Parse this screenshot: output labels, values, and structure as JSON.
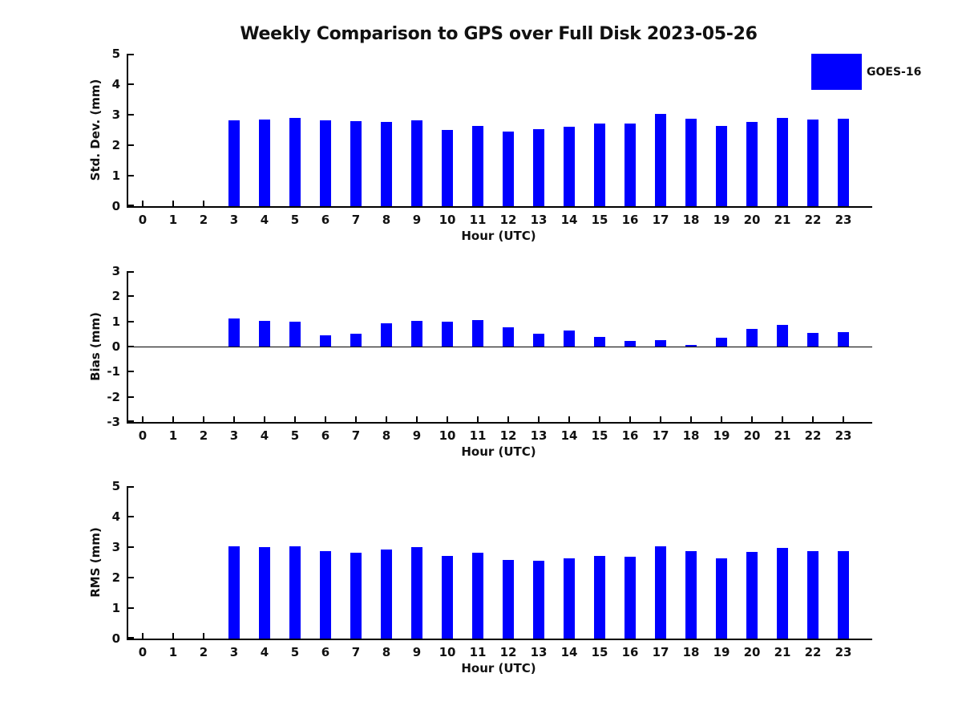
{
  "title": "Weekly Comparison to GPS over Full Disk 2023-05-26",
  "legend": {
    "label": "GOES-16",
    "color": "#0000FF",
    "position": "top-right"
  },
  "colors": {
    "bar": "#0000FF",
    "axis": "#000000",
    "text": "#111111",
    "background": "#ffffff"
  },
  "chart_data": [
    {
      "type": "bar",
      "title": "",
      "ylabel": "Std. Dev. (mm)",
      "xlabel": "Hour (UTC)",
      "ylim": [
        0,
        5
      ],
      "yticks": [
        0,
        1,
        2,
        3,
        4,
        5
      ],
      "xlim": [
        -0.5,
        24
      ],
      "x": [
        0,
        1,
        2,
        3,
        4,
        5,
        6,
        7,
        8,
        9,
        10,
        11,
        12,
        13,
        14,
        15,
        16,
        17,
        18,
        19,
        20,
        21,
        22,
        23
      ],
      "grid": false,
      "series": [
        {
          "name": "GOES-16",
          "values": [
            null,
            null,
            null,
            2.82,
            2.85,
            2.9,
            2.82,
            2.79,
            2.77,
            2.82,
            2.5,
            2.63,
            2.45,
            2.52,
            2.6,
            2.7,
            2.7,
            3.03,
            2.87,
            2.63,
            2.77,
            2.9,
            2.85,
            2.87
          ]
        }
      ]
    },
    {
      "type": "bar",
      "title": "",
      "ylabel": "Bias (mm)",
      "xlabel": "Hour (UTC)",
      "ylim": [
        -3,
        3
      ],
      "yticks": [
        -3,
        -2,
        -1,
        0,
        1,
        2,
        3
      ],
      "xlim": [
        -0.5,
        24
      ],
      "x": [
        0,
        1,
        2,
        3,
        4,
        5,
        6,
        7,
        8,
        9,
        10,
        11,
        12,
        13,
        14,
        15,
        16,
        17,
        18,
        19,
        20,
        21,
        22,
        23
      ],
      "grid": false,
      "zeroline": true,
      "series": [
        {
          "name": "GOES-16",
          "values": [
            null,
            null,
            null,
            1.12,
            1.03,
            1.0,
            0.44,
            0.5,
            0.94,
            1.03,
            1.0,
            1.06,
            0.78,
            0.52,
            0.63,
            0.37,
            0.23,
            0.27,
            0.07,
            0.34,
            0.69,
            0.87,
            0.54,
            0.56
          ]
        }
      ]
    },
    {
      "type": "bar",
      "title": "",
      "ylabel": "RMS (mm)",
      "xlabel": "Hour (UTC)",
      "ylim": [
        0,
        5
      ],
      "yticks": [
        0,
        1,
        2,
        3,
        4,
        5
      ],
      "xlim": [
        -0.5,
        24
      ],
      "x": [
        0,
        1,
        2,
        3,
        4,
        5,
        6,
        7,
        8,
        9,
        10,
        11,
        12,
        13,
        14,
        15,
        16,
        17,
        18,
        19,
        20,
        21,
        22,
        23
      ],
      "grid": false,
      "series": [
        {
          "name": "GOES-16",
          "values": [
            null,
            null,
            null,
            3.03,
            3.0,
            3.03,
            2.86,
            2.82,
            2.93,
            3.0,
            2.7,
            2.82,
            2.58,
            2.56,
            2.64,
            2.71,
            2.68,
            3.02,
            2.86,
            2.62,
            2.83,
            2.98,
            2.86,
            2.88
          ]
        }
      ]
    }
  ]
}
